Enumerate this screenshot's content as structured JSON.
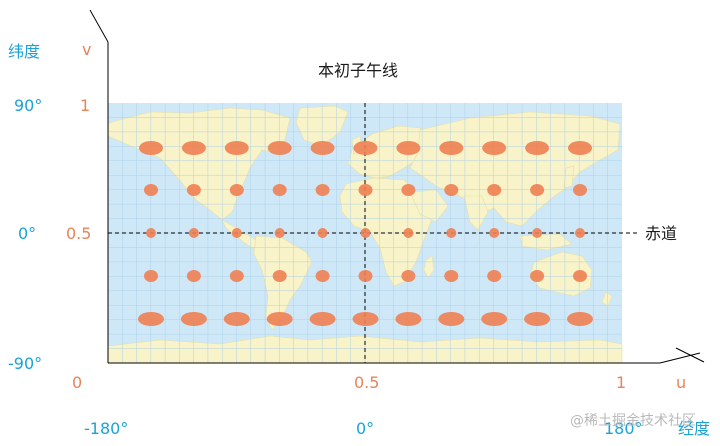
{
  "axes": {
    "lat_title": "纬度",
    "lon_title": "经度",
    "u_label": "u",
    "v_label": "v"
  },
  "lat_ticks": [
    "90°",
    "0°",
    "-90°"
  ],
  "v_ticks": [
    "1",
    "0.5"
  ],
  "u_ticks": [
    "0",
    "0.5",
    "1"
  ],
  "lon_ticks": [
    "-180°",
    "0°",
    "180°"
  ],
  "annotations": {
    "prime_meridian": "本初子午线",
    "equator": "赤道"
  },
  "watermark": "@稀土掘金技术社区",
  "colors": {
    "ocean": "#cfe8f7",
    "land": "#f8f3c8",
    "grid": "#a9cfe6",
    "ellipse": "#ee7f52",
    "label_blue": "#1aa3d6",
    "label_orange": "#e8845a"
  },
  "ellipse_grid": {
    "columns": 11,
    "rows": 5,
    "note_values": "Tissot-style distortion ellipses; widths grow toward poles"
  }
}
